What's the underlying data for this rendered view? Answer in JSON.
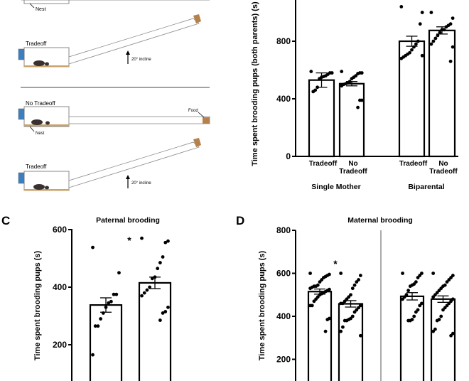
{
  "panel_a": {
    "labels": {
      "nest": "Nest",
      "tradeoff": "Tradeoff",
      "no_tradeoff": "No Tradeoff",
      "food": "Food",
      "incline": "20° incline"
    },
    "colors": {
      "water": "#3a7fc4",
      "food": "#b5804a",
      "bedding": "#c9a46b",
      "mouse": "#3a3030"
    }
  },
  "chart_data": [
    {
      "panel": "B",
      "type": "bar",
      "ylabel": "Time spent brooding pups (both parents) (s)",
      "ylim": [
        0,
        1000
      ],
      "yticks": [
        0,
        400,
        800
      ],
      "groups": [
        "Single Mother",
        "Biparental"
      ],
      "categories": [
        "Tradeoff",
        "No Tradeoff",
        "Tradeoff",
        "No Tradeoff"
      ],
      "category_lines": [
        [
          "Tradeoff"
        ],
        [
          "No",
          "Tradeoff"
        ],
        [
          "Tradeoff"
        ],
        [
          "No",
          "Tradeoff"
        ]
      ],
      "values": [
        530,
        505,
        800,
        875
      ],
      "sem": [
        50,
        15,
        35,
        25
      ],
      "points": [
        [
          590,
          580,
          580,
          570,
          560,
          555,
          550,
          540,
          480,
          460,
          450
        ],
        [
          590,
          580,
          580,
          575,
          560,
          550,
          540,
          520,
          510,
          505,
          500,
          490,
          390,
          390,
          340
        ],
        [
          1040,
          1000,
          920,
          800,
          780,
          760,
          740,
          720,
          710,
          700,
          690,
          680,
          700
        ],
        [
          1000,
          960,
          920,
          910,
          900,
          880,
          880,
          860,
          840,
          820,
          800,
          780,
          760,
          660
        ]
      ]
    },
    {
      "panel": "C",
      "panel_letter": "C",
      "type": "bar",
      "title": "Paternal brooding",
      "ylabel": "Time spent brooding pups (s)",
      "ylim": [
        0,
        600
      ],
      "yticks": [
        200,
        400,
        600
      ],
      "values": [
        338,
        415
      ],
      "sem": [
        25,
        20
      ],
      "significance": "*",
      "points": [
        [
          538,
          450,
          375,
          375,
          350,
          345,
          330,
          310,
          290,
          265,
          265,
          165
        ],
        [
          570,
          560,
          555,
          505,
          485,
          465,
          435,
          430,
          400,
          390,
          380,
          370,
          330,
          315,
          310,
          285
        ]
      ]
    },
    {
      "panel": "D",
      "panel_letter": "D",
      "type": "bar",
      "title": "Maternal brooding",
      "ylabel": "Time spent brooding pups (s)",
      "ylim": [
        0,
        800
      ],
      "yticks": [
        200,
        400,
        600,
        800
      ],
      "values": [
        515,
        458,
        493,
        480
      ],
      "sem": [
        12,
        15,
        17,
        15
      ],
      "significance": "*",
      "points": [
        [
          600,
          595,
          590,
          585,
          580,
          570,
          560,
          545,
          540,
          540,
          535,
          530,
          525,
          520,
          515,
          510,
          505,
          500,
          490,
          480,
          470,
          450,
          450,
          390,
          385,
          330
        ],
        [
          600,
          590,
          570,
          560,
          545,
          530,
          500,
          490,
          480,
          470,
          460,
          460,
          450,
          440,
          430,
          420,
          400,
          390,
          385,
          380,
          380,
          350,
          330,
          310
        ],
        [
          600,
          600,
          590,
          580,
          560,
          550,
          545,
          540,
          520,
          500,
          490,
          480,
          460,
          450,
          430,
          420,
          400,
          385,
          380,
          380
        ],
        [
          600,
          590,
          580,
          570,
          560,
          545,
          540,
          530,
          520,
          510,
          500,
          490,
          480,
          470,
          460,
          450,
          440,
          430,
          400,
          385,
          380,
          340,
          330,
          320,
          310
        ]
      ]
    }
  ]
}
